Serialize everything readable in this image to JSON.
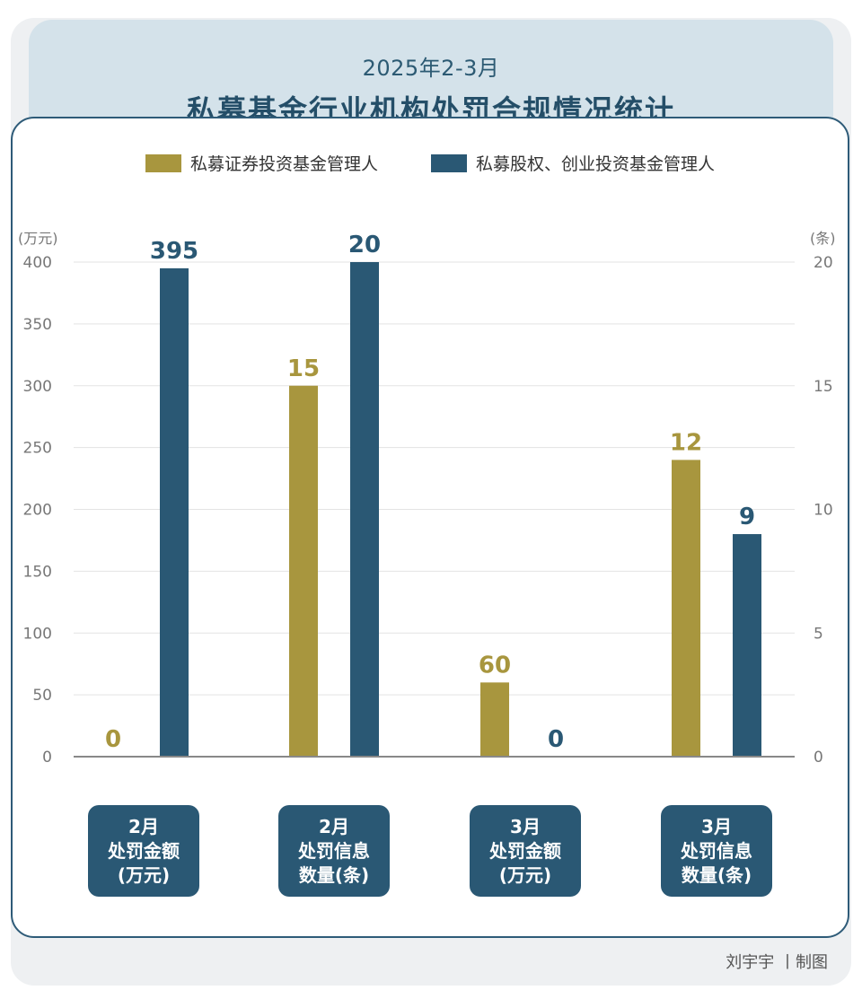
{
  "header": {
    "subtitle": "2025年2-3月",
    "title": "私募基金行业机构处罚合规情况统计"
  },
  "colors": {
    "series_gold": "#a8963e",
    "series_blue": "#2a5874",
    "title_bg": "#d4e2ea",
    "border": "#2e5b78"
  },
  "chart_data": {
    "type": "bar",
    "categories": [
      [
        "2月",
        "处罚金额",
        "(万元)"
      ],
      [
        "2月",
        "处罚信息",
        "数量(条)"
      ],
      [
        "3月",
        "处罚金额",
        "(万元)"
      ],
      [
        "3月",
        "处罚信息",
        "数量(条)"
      ]
    ],
    "category_axis": [
      "left",
      "right",
      "left",
      "right"
    ],
    "series": [
      {
        "name": "私募证券投资基金管理人",
        "values": [
          0,
          15,
          60,
          12
        ]
      },
      {
        "name": "私募股权、创业投资基金管理人",
        "values": [
          395,
          20,
          0,
          9
        ]
      }
    ],
    "y_left": {
      "unit": "(万元)",
      "ylim": [
        0,
        400
      ],
      "ticks": [
        "0",
        "50",
        "100",
        "150",
        "200",
        "250",
        "300",
        "350",
        "400"
      ]
    },
    "y_right": {
      "unit": "(条)",
      "ylim": [
        0,
        20
      ],
      "ticks": [
        "0",
        "5",
        "10",
        "15",
        "20"
      ]
    },
    "grid": true,
    "legend": "top-center"
  },
  "footer": {
    "credit": "刘宇宇 丨制图"
  }
}
